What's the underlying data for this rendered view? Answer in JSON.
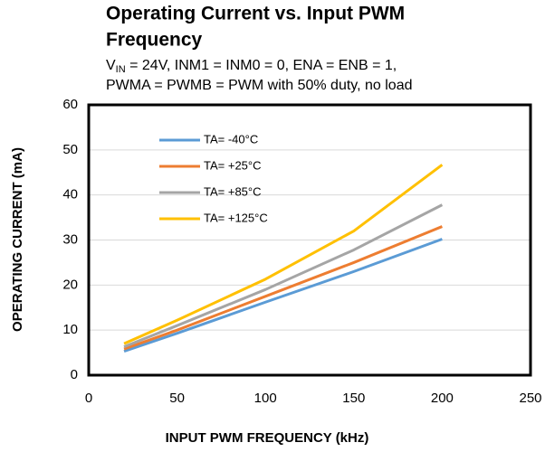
{
  "chart_data": {
    "type": "line",
    "title": [
      "Operating Current vs. Input PWM",
      "Frequency"
    ],
    "subtitle": [
      [
        "V",
        "IN",
        " = 24V, INM1 = INM0 = 0, ENA = ENB = 1,"
      ],
      [
        "PWMA = PWMB = PWM with 50% duty, no load"
      ]
    ],
    "x_label": "INPUT PWM FREQUENCY (kHz)",
    "y_label": "OPERATING CURRENT (mA)",
    "x": [
      20,
      50,
      100,
      150,
      200
    ],
    "series": [
      {
        "name": "TA= -40°C",
        "color": "#5b9bd5",
        "values": [
          5.3,
          9.3,
          16.2,
          23.0,
          30.2
        ]
      },
      {
        "name": "TA= +25°C",
        "color": "#ed7d31",
        "values": [
          5.8,
          10.0,
          17.5,
          25.0,
          33.0
        ]
      },
      {
        "name": "TA= +85°C",
        "color": "#a5a5a5",
        "values": [
          6.3,
          11.0,
          19.0,
          27.8,
          37.8
        ]
      },
      {
        "name": "TA= +125°C",
        "color": "#ffc000",
        "values": [
          7.0,
          12.2,
          21.3,
          32.0,
          46.7
        ]
      }
    ],
    "xlim": [
      0,
      250
    ],
    "xticks": [
      0,
      50,
      100,
      150,
      200,
      250
    ],
    "ylim": [
      0,
      60
    ],
    "yticks": [
      0,
      10,
      20,
      30,
      40,
      50,
      60
    ],
    "grid": true,
    "legend": "upper-left"
  }
}
